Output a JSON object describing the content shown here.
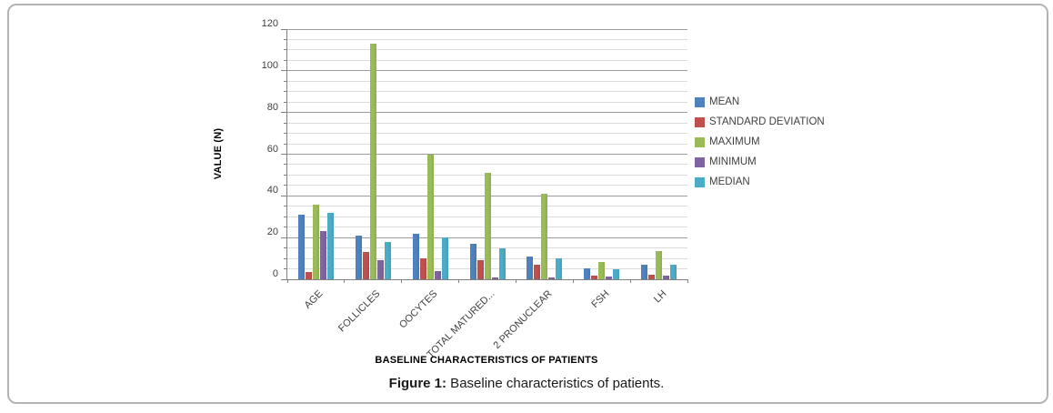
{
  "figure": {
    "caption_label": "Figure 1:",
    "caption_text": " Baseline characteristics of patients."
  },
  "chart_data": {
    "type": "bar",
    "title": "",
    "xlabel": "BASELINE CHARACTERISTICS OF PATIENTS",
    "ylabel": "VALUE (N)",
    "ylim": [
      0,
      120
    ],
    "ytick_step": 20,
    "minor_grid_step": 5,
    "grid": true,
    "legend_position": "right",
    "categories": [
      "AGE",
      "FOLLICLES",
      "OOCYTES",
      "TOTAL MATURED...",
      "2 PRONUCLEAR",
      "FSH",
      "LH"
    ],
    "series": [
      {
        "name": "MEAN",
        "color": "#4f81bd",
        "values": [
          31,
          21,
          22,
          17,
          11,
          5.3,
          6.9
        ]
      },
      {
        "name": "STANDARD DEVIATION",
        "color": "#c0504d",
        "values": [
          3.5,
          13,
          10,
          9,
          7,
          1.8,
          2.2
        ]
      },
      {
        "name": "MAXIMUM",
        "color": "#9bbb59",
        "values": [
          36,
          113,
          60,
          51,
          41,
          8.4,
          13.6
        ]
      },
      {
        "name": "MINIMUM",
        "color": "#8064a2",
        "values": [
          23,
          9,
          4,
          1,
          1,
          1.2,
          1.7
        ]
      },
      {
        "name": "MEDIAN",
        "color": "#4bacc6",
        "values": [
          32,
          18,
          20,
          15,
          10,
          4.8,
          6.8
        ]
      }
    ]
  }
}
